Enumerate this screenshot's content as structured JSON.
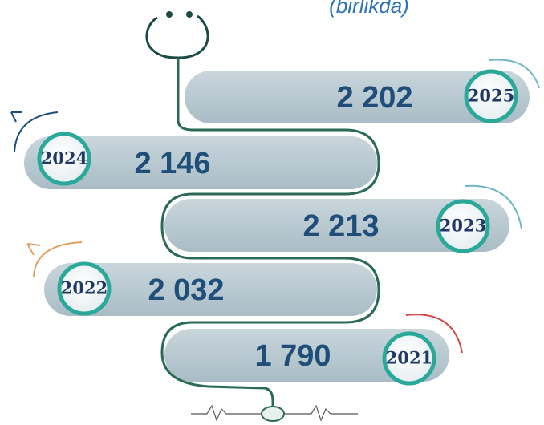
{
  "subtitle": "(birlikda)",
  "items": [
    {
      "year": "2025",
      "value": "2 202"
    },
    {
      "year": "2024",
      "value": "2 146"
    },
    {
      "year": "2023",
      "value": "2 213"
    },
    {
      "year": "2022",
      "value": "2 032"
    },
    {
      "year": "2021",
      "value": "1 790"
    }
  ]
}
